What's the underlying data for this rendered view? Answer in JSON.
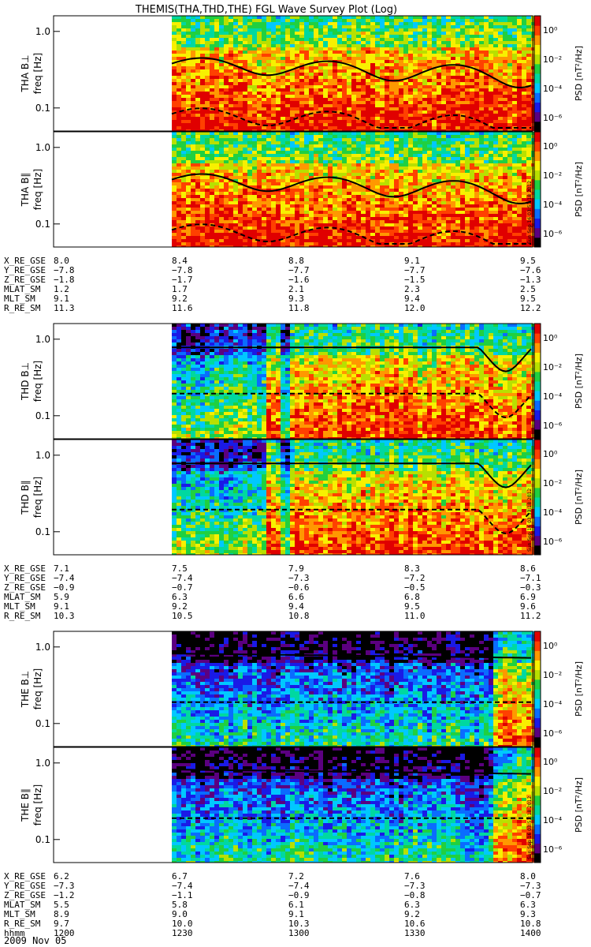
{
  "title": "THEMIS(THA,THD,THE) FGL Wave Survey Plot (Log)",
  "colorbar": {
    "label": "PSD [nT²/Hz]",
    "ticks": [
      "10⁰",
      "10⁻²",
      "10⁻⁴",
      "10⁻⁶"
    ],
    "colors": [
      "#000000",
      "#5b0080",
      "#1a1ae6",
      "#0a6cff",
      "#00c8ff",
      "#00d8a0",
      "#20d040",
      "#b8e000",
      "#f8f000",
      "#ff9800",
      "#ff4000",
      "#e00000"
    ]
  },
  "footer": {
    "date": "2009 Nov 05",
    "stamp": "Sun Sep 16 03:53:18 2012"
  },
  "chart_data": {
    "type": "heatmap",
    "x_ticks": [
      "1200",
      "1230",
      "1300",
      "1330",
      "1400"
    ],
    "ylabel": "freq [Hz]",
    "ylim": [
      0.05,
      1.6
    ],
    "y_scale": "log",
    "y_ticks": [
      "1.0",
      "0.1"
    ],
    "probes": [
      {
        "panels": [
          {
            "label": "THA B⊥",
            "bg": "high"
          },
          {
            "label": "THA B∥",
            "bg": "high"
          }
        ],
        "ephemeris": [
          {
            "name": "X_RE_GSE",
            "values": [
              "8.0",
              "8.4",
              "8.8",
              "9.1",
              "9.5"
            ]
          },
          {
            "name": "Y_RE_GSE",
            "values": [
              "−7.8",
              "−7.8",
              "−7.7",
              "−7.7",
              "−7.6"
            ]
          },
          {
            "name": "Z_RE_GSE",
            "values": [
              "−1.8",
              "−1.7",
              "−1.6",
              "−1.5",
              "−1.3"
            ]
          },
          {
            "name": "MLAT_SM",
            "values": [
              "1.2",
              "1.7",
              "2.1",
              "2.3",
              "2.5"
            ]
          },
          {
            "name": "MLT_SM",
            "values": [
              "9.1",
              "9.2",
              "9.3",
              "9.4",
              "9.5"
            ]
          },
          {
            "name": "R_RE_SM",
            "values": [
              "11.3",
              "11.6",
              "11.8",
              "12.0",
              "12.2"
            ]
          }
        ]
      },
      {
        "panels": [
          {
            "label": "THD B⊥",
            "bg": "mid"
          },
          {
            "label": "THD B∥",
            "bg": "mid"
          }
        ],
        "ephemeris": [
          {
            "name": "X_RE_GSE",
            "values": [
              "7.1",
              "7.5",
              "7.9",
              "8.3",
              "8.6"
            ]
          },
          {
            "name": "Y_RE_GSE",
            "values": [
              "−7.4",
              "−7.4",
              "−7.3",
              "−7.2",
              "−7.1"
            ]
          },
          {
            "name": "Z_RE_GSE",
            "values": [
              "−0.9",
              "−0.7",
              "−0.6",
              "−0.5",
              "−0.3"
            ]
          },
          {
            "name": "MLAT_SM",
            "values": [
              "5.9",
              "6.3",
              "6.6",
              "6.8",
              "6.9"
            ]
          },
          {
            "name": "MLT_SM",
            "values": [
              "9.1",
              "9.2",
              "9.4",
              "9.5",
              "9.6"
            ]
          },
          {
            "name": "R_RE_SM",
            "values": [
              "10.3",
              "10.5",
              "10.8",
              "11.0",
              "11.2"
            ]
          }
        ]
      },
      {
        "panels": [
          {
            "label": "THE B⊥",
            "bg": "low"
          },
          {
            "label": "THE B∥",
            "bg": "low"
          }
        ],
        "ephemeris": [
          {
            "name": "X_RE_GSE",
            "values": [
              "6.2",
              "6.7",
              "7.2",
              "7.6",
              "8.0"
            ]
          },
          {
            "name": "Y_RE_GSE",
            "values": [
              "−7.3",
              "−7.4",
              "−7.4",
              "−7.3",
              "−7.3"
            ]
          },
          {
            "name": "Z_RE_GSE",
            "values": [
              "−1.2",
              "−1.1",
              "−0.9",
              "−0.8",
              "−0.7"
            ]
          },
          {
            "name": "MLAT_SM",
            "values": [
              "5.5",
              "5.8",
              "6.1",
              "6.3",
              "6.3"
            ]
          },
          {
            "name": "MLT_SM",
            "values": [
              "8.9",
              "9.0",
              "9.1",
              "9.2",
              "9.3"
            ]
          },
          {
            "name": "R_RE_SM",
            "values": [
              "9.7",
              "10.0",
              "10.3",
              "10.6",
              "10.8"
            ]
          },
          {
            "name": "hhmm",
            "values": [
              "1200",
              "1230",
              "1300",
              "1330",
              "1400"
            ]
          }
        ]
      }
    ]
  }
}
